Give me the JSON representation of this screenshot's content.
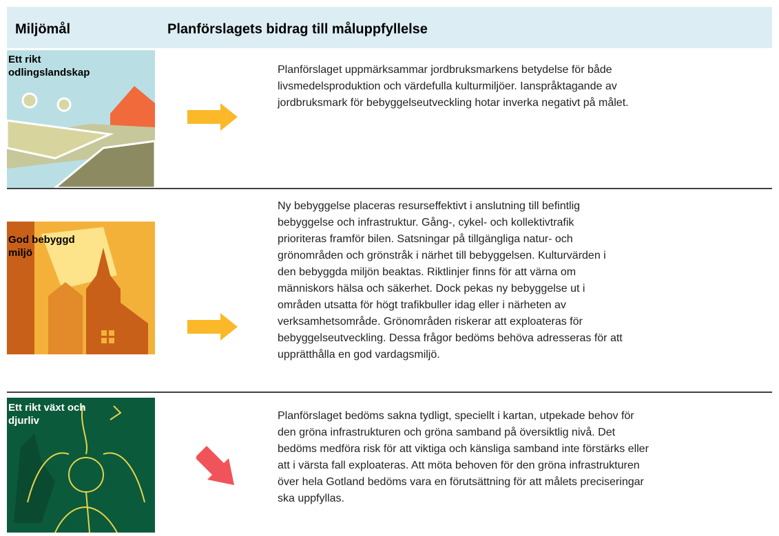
{
  "header": {
    "col1": "Miljömål",
    "col2": "Planförslagets bidrag till måluppfyllelse"
  },
  "rows": [
    {
      "label_lines": [
        "Ett rikt",
        "odlingslandskap"
      ],
      "lines": [
        "Planförslaget uppmärksammar jordbruksmarkens betydelse för både",
        "livsmedelsproduktion och värdefulla kulturmiljöer. Ianspråktagande av",
        "jordbruksmark för bebyggelseutveckling hotar inverka negativt på målet."
      ]
    },
    {
      "label_lines": [
        "God bebyggd",
        "miljö"
      ],
      "lines": [
        "Ny bebyggelse placeras resurseffektivt i anslutning till befintlig",
        "bebyggelse och infrastruktur. Gång-, cykel- och kollektivtrafik",
        "prioriteras framför bilen. Satsningar på tillgängliga natur- och",
        "grönområden och grönstråk i närhet till bebyggelsen. Kulturvärden i",
        "den bebyggda miljön beaktas. Riktlinjer finns för att värna om",
        "människors hälsa och säkerhet. Dock pekas ny bebyggelse ut i",
        "områden utsatta för högt trafikbuller idag eller i närheten av",
        "verksamhetsområde. Grönområden riskerar att exploateras för",
        "bebyggelseutveckling. Dessa frågor bedöms behöva adresseras för att",
        "upprätthålla en god vardagsmiljö."
      ]
    },
    {
      "label_lines": [
        "Ett rikt växt och",
        "djurliv"
      ],
      "lines": [
        "Planförslaget bedöms sakna tydligt, speciellt i kartan, utpekade behov för",
        "den gröna infrastrukturen och gröna samband på översiktlig nivå. Det",
        "bedöms medföra risk för att viktiga och känsliga samband inte förstärks eller",
        "att i värsta fall exploateras. Att möta behoven för den gröna infrastrukturen",
        "över hela Gotland bedöms vara en förutsättning för att målets preciseringar",
        "ska uppfyllas."
      ]
    }
  ]
}
